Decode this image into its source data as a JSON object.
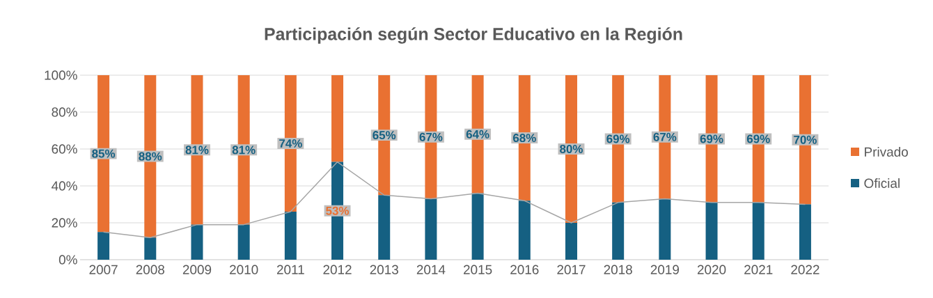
{
  "chart_data": {
    "type": "bar",
    "title": "Participación según Sector Educativo en la Región",
    "stacked": true,
    "grid": "y",
    "legend": "right",
    "categories": [
      "2007",
      "2008",
      "2009",
      "2010",
      "2011",
      "2012",
      "2013",
      "2014",
      "2015",
      "2016",
      "2017",
      "2018",
      "2019",
      "2020",
      "2021",
      "2022"
    ],
    "ylim": [
      0,
      100
    ],
    "yticks": [
      {
        "value": 0,
        "label": "0%"
      },
      {
        "value": 20,
        "label": "20%"
      },
      {
        "value": 40,
        "label": "40%"
      },
      {
        "value": 60,
        "label": "60%"
      },
      {
        "value": 80,
        "label": "80%"
      },
      {
        "value": 100,
        "label": "100%"
      }
    ],
    "series": [
      {
        "name": "Oficial",
        "color": "#156082",
        "values": [
          15,
          12,
          19,
          19,
          26,
          53,
          35,
          33,
          36,
          32,
          20,
          31,
          33,
          31,
          31,
          30
        ],
        "value_labels": [
          null,
          null,
          null,
          null,
          null,
          "53%",
          null,
          null,
          null,
          null,
          null,
          null,
          null,
          null,
          null,
          null
        ]
      },
      {
        "name": "Privado",
        "color": "#e97132",
        "values": [
          85,
          88,
          81,
          81,
          74,
          47,
          65,
          67,
          64,
          68,
          80,
          69,
          67,
          69,
          69,
          70
        ],
        "value_labels": [
          "85%",
          "88%",
          "81%",
          "81%",
          "74%",
          null,
          "65%",
          "67%",
          "64%",
          "68%",
          "80%",
          "69%",
          "67%",
          "69%",
          "69%",
          "70%"
        ]
      },
      {
        "type": "line",
        "color": "#a6a6a6",
        "values": [
          15,
          12,
          19,
          19,
          26,
          53,
          35,
          33,
          36,
          32,
          20,
          31,
          33,
          31,
          31,
          30
        ]
      }
    ]
  }
}
